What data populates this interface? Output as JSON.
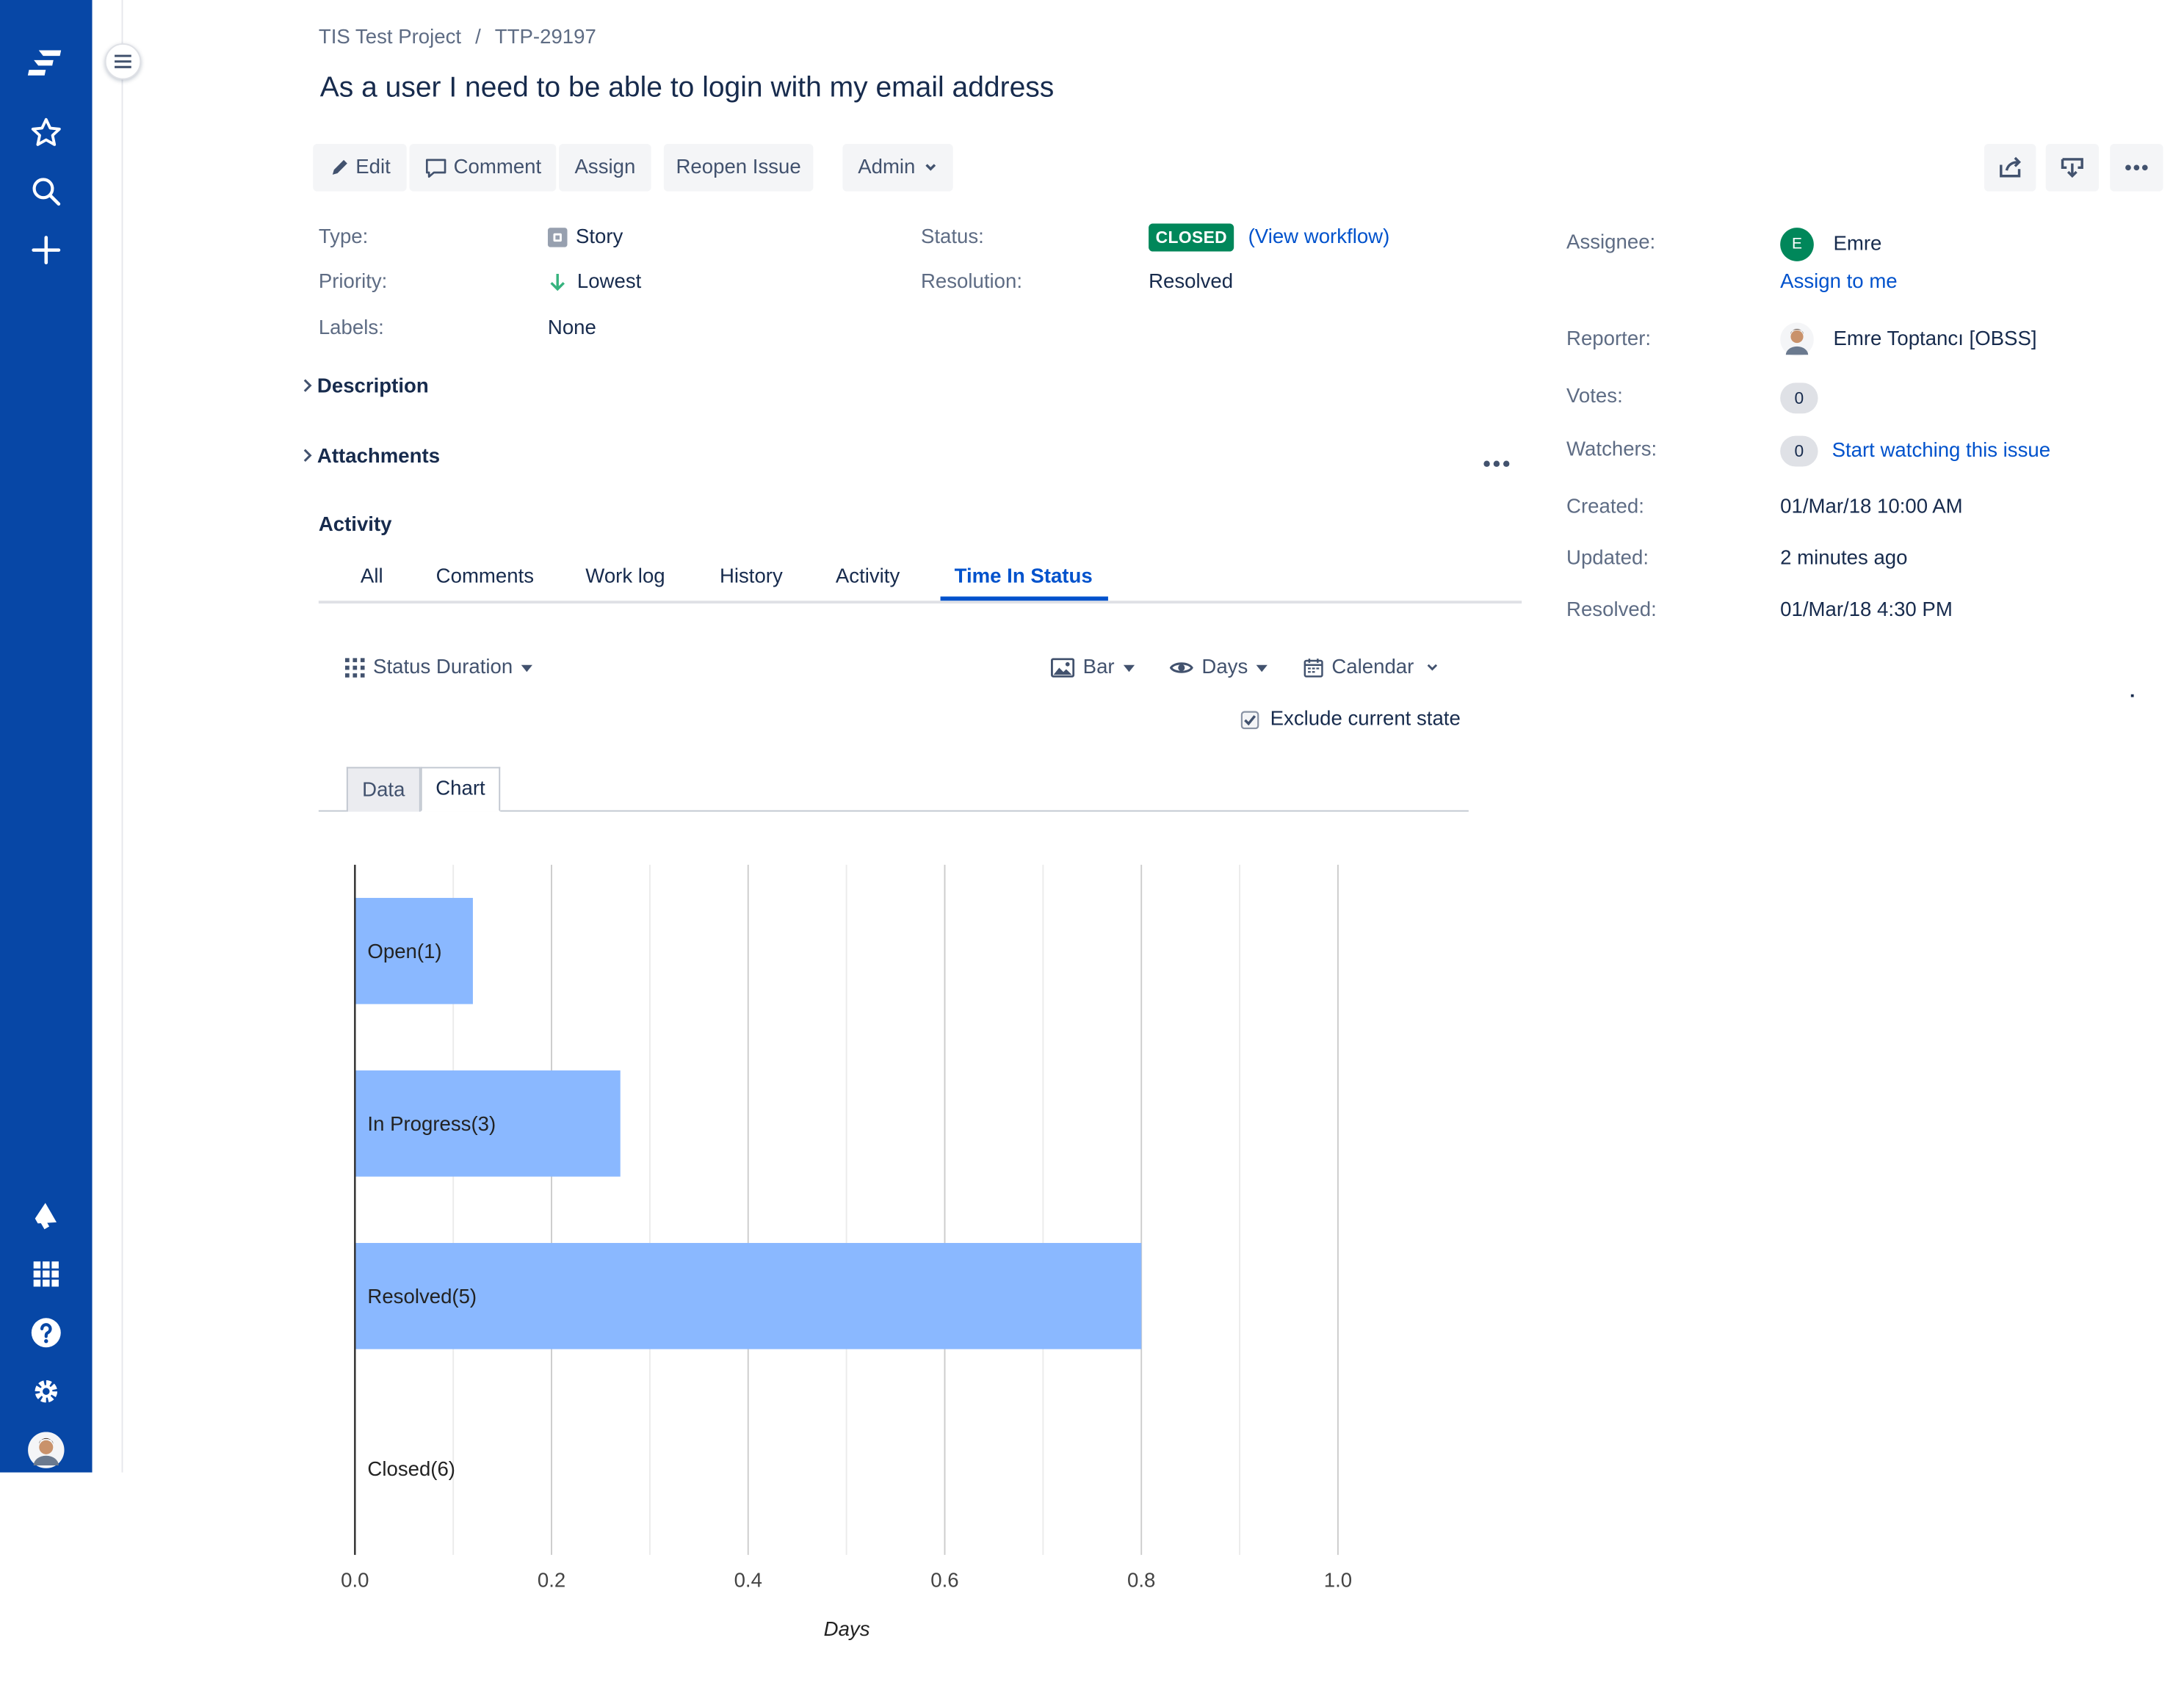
{
  "nav": {
    "icons": [
      "jira-logo-icon",
      "star-icon",
      "search-icon",
      "plus-icon",
      "megaphone-icon",
      "app-switcher-icon",
      "help-icon",
      "settings-icon",
      "avatar"
    ]
  },
  "breadcrumb": {
    "project": "TIS Test Project",
    "separator": "/",
    "issue_key": "TTP-29197"
  },
  "issue": {
    "title": "As a user I need to be able to login with my email address"
  },
  "toolbar": {
    "edit": "Edit",
    "comment": "Comment",
    "assign": "Assign",
    "reopen": "Reopen Issue",
    "admin": "Admin"
  },
  "details": {
    "type_label": "Type:",
    "type_value": "Story",
    "priority_label": "Priority:",
    "priority_value": "Lowest",
    "labels_label": "Labels:",
    "labels_value": "None",
    "status_label": "Status:",
    "status_value": "CLOSED",
    "view_workflow": "(View workflow)",
    "resolution_label": "Resolution:",
    "resolution_value": "Resolved"
  },
  "people": {
    "assignee_label": "Assignee:",
    "assignee_initial": "E",
    "assignee_name": "Emre",
    "assign_to_me": "Assign to me",
    "reporter_label": "Reporter:",
    "reporter_name": "Emre Toptancı [OBSS]",
    "votes_label": "Votes:",
    "votes_count": "0",
    "watchers_label": "Watchers:",
    "watchers_count": "0",
    "start_watching": "Start watching this issue"
  },
  "dates": {
    "created_label": "Created:",
    "created_value": "01/Mar/18 10:00 AM",
    "updated_label": "Updated:",
    "updated_value": "2 minutes ago",
    "resolved_label": "Resolved:",
    "resolved_value": "01/Mar/18 4:30 PM"
  },
  "sections": {
    "description": "Description",
    "attachments": "Attachments",
    "activity": "Activity"
  },
  "activity_tabs": [
    "All",
    "Comments",
    "Work log",
    "History",
    "Activity",
    "Time In Status"
  ],
  "activity_active_tab": "Time In Status",
  "tis": {
    "report": "Status Duration",
    "chart_type": "Bar",
    "unit": "Days",
    "calendar": "Calendar",
    "exclude_label": "Exclude current state",
    "exclude_checked": true,
    "subtabs": [
      "Data",
      "Chart"
    ],
    "active_subtab": "Chart"
  },
  "colors": {
    "nav": "#0747a6",
    "bar": "#8ab8ff",
    "link": "#0052cc",
    "closed": "#00875a"
  },
  "chart_data": {
    "type": "bar",
    "orientation": "horizontal",
    "categories": [
      "Open(1)",
      "In Progress(3)",
      "Resolved(5)",
      "Closed(6)"
    ],
    "values": [
      0.12,
      0.27,
      0.8,
      0
    ],
    "xlabel": "Days",
    "xlim": [
      0,
      1.0
    ],
    "xticks": [
      "0.0",
      "0.2",
      "0.4",
      "0.6",
      "0.8",
      "1.0"
    ],
    "grid": true
  }
}
